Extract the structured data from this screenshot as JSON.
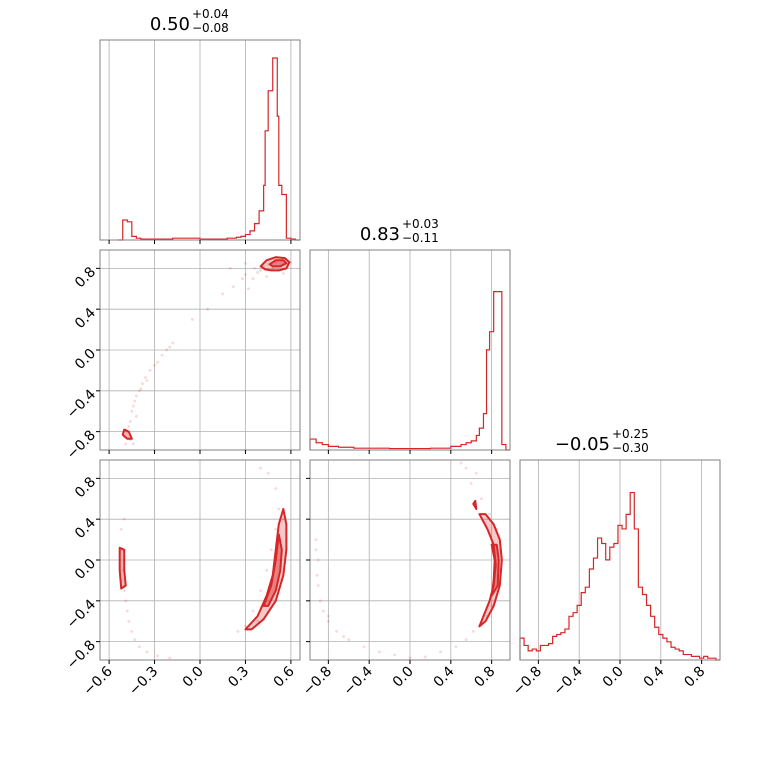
{
  "chart_data": {
    "type": "corner",
    "color": "#d62728",
    "axis_color": "#808080",
    "grid_color": "#b0b0b0",
    "grid": true,
    "parameters": [
      {
        "title": {
          "median": "0.50",
          "plus": "+0.04",
          "minus": "−0.08"
        },
        "range": [
          -0.66,
          0.66
        ],
        "ticks": [
          -0.6,
          -0.3,
          0.0,
          0.3,
          0.6
        ],
        "tick_labels": [
          "−0.6",
          "−0.3",
          "0.0",
          "0.3",
          "0.6"
        ],
        "histogram": {
          "x": [
            -0.54,
            -0.51,
            -0.48,
            -0.45,
            -0.42,
            -0.39,
            -0.33,
            -0.24,
            -0.18,
            0.0,
            0.18,
            0.24,
            0.27,
            0.3,
            0.33,
            0.36,
            0.39,
            0.42,
            0.43,
            0.45,
            0.46,
            0.48,
            0.49,
            0.51,
            0.52,
            0.54,
            0.57,
            0.6,
            0.63
          ],
          "y": [
            0.0,
            0.11,
            0.1,
            0.02,
            0.01,
            0.005,
            0.005,
            0.005,
            0.01,
            0.005,
            0.01,
            0.015,
            0.02,
            0.03,
            0.05,
            0.09,
            0.16,
            0.3,
            0.6,
            0.82,
            0.82,
            1.0,
            1.0,
            0.68,
            0.3,
            0.25,
            0.01,
            0.005,
            0.0
          ]
        }
      },
      {
        "title": {
          "median": "0.83",
          "plus": "+0.03",
          "minus": "−0.11"
        },
        "range": [
          -0.98,
          0.98
        ],
        "ticks": [
          -0.8,
          -0.4,
          0.0,
          0.4,
          0.8
        ],
        "tick_labels": [
          "−0.8",
          "−0.4",
          "0.0",
          "0.4",
          "0.8"
        ],
        "histogram": {
          "x": [
            -0.98,
            -0.92,
            -0.86,
            -0.8,
            -0.7,
            -0.55,
            -0.4,
            -0.2,
            0.0,
            0.2,
            0.4,
            0.5,
            0.55,
            0.6,
            0.65,
            0.68,
            0.72,
            0.75,
            0.78,
            0.82,
            0.86,
            0.9,
            0.94
          ],
          "y": [
            0.06,
            0.04,
            0.03,
            0.02,
            0.015,
            0.01,
            0.01,
            0.008,
            0.008,
            0.01,
            0.02,
            0.03,
            0.04,
            0.05,
            0.08,
            0.12,
            0.2,
            0.55,
            0.65,
            0.87,
            0.87,
            0.03,
            0.0
          ]
        }
      },
      {
        "title": {
          "median": "−0.05",
          "plus": "+0.25",
          "minus": "−0.30"
        },
        "range": [
          -0.98,
          0.98
        ],
        "ticks": [
          -0.8,
          -0.4,
          0.0,
          0.4,
          0.8
        ],
        "tick_labels": [
          "−0.8",
          "−0.4",
          "0.0",
          "0.4",
          "0.8"
        ],
        "histogram": {
          "x": [
            -0.98,
            -0.94,
            -0.9,
            -0.86,
            -0.82,
            -0.78,
            -0.74,
            -0.7,
            -0.66,
            -0.62,
            -0.58,
            -0.54,
            -0.5,
            -0.46,
            -0.42,
            -0.38,
            -0.34,
            -0.3,
            -0.26,
            -0.22,
            -0.18,
            -0.14,
            -0.1,
            -0.06,
            -0.02,
            0.02,
            0.06,
            0.1,
            0.14,
            0.18,
            0.22,
            0.26,
            0.3,
            0.34,
            0.38,
            0.42,
            0.46,
            0.5,
            0.54,
            0.58,
            0.62,
            0.66,
            0.7,
            0.74,
            0.78,
            0.82,
            0.86,
            0.9,
            0.94
          ],
          "y": [
            0.12,
            0.08,
            0.05,
            0.06,
            0.05,
            0.08,
            0.08,
            0.09,
            0.13,
            0.14,
            0.15,
            0.17,
            0.24,
            0.26,
            0.3,
            0.37,
            0.4,
            0.5,
            0.56,
            0.67,
            0.64,
            0.55,
            0.62,
            0.64,
            0.74,
            0.72,
            0.8,
            0.92,
            0.72,
            0.4,
            0.36,
            0.3,
            0.24,
            0.18,
            0.14,
            0.12,
            0.1,
            0.07,
            0.06,
            0.05,
            0.03,
            0.03,
            0.02,
            0.02,
            0.01,
            0.02,
            0.01,
            0.01,
            0.0
          ]
        }
      }
    ],
    "panels_2d": [
      {
        "row": 1,
        "col": 0,
        "scatter": [
          [
            -0.5,
            -0.85
          ],
          [
            -0.48,
            -0.8
          ],
          [
            -0.47,
            -0.75
          ],
          [
            -0.46,
            -0.7
          ],
          [
            -0.45,
            -0.6
          ],
          [
            -0.44,
            -0.55
          ],
          [
            -0.43,
            -0.5
          ],
          [
            -0.42,
            -0.45
          ],
          [
            -0.4,
            -0.4
          ],
          [
            -0.38,
            -0.33
          ],
          [
            -0.36,
            -0.27
          ],
          [
            -0.33,
            -0.2
          ],
          [
            -0.3,
            -0.15
          ],
          [
            -0.28,
            -0.12
          ],
          [
            -0.25,
            -0.05
          ],
          [
            -0.22,
            0.0
          ],
          [
            -0.18,
            0.07
          ],
          [
            -0.2,
            0.03
          ],
          [
            -0.35,
            -0.3
          ],
          [
            -0.05,
            0.3
          ],
          [
            0.05,
            0.4
          ],
          [
            0.15,
            0.55
          ],
          [
            0.22,
            0.62
          ],
          [
            0.28,
            0.7
          ],
          [
            0.3,
            0.74
          ],
          [
            0.32,
            0.6
          ],
          [
            0.35,
            0.7
          ],
          [
            0.38,
            0.76
          ],
          [
            0.4,
            0.78
          ],
          [
            0.42,
            0.82
          ],
          [
            0.45,
            0.84
          ],
          [
            0.48,
            0.8
          ],
          [
            0.52,
            0.78
          ],
          [
            0.55,
            0.75
          ],
          [
            0.58,
            0.82
          ],
          [
            0.6,
            0.86
          ],
          [
            0.36,
            0.8
          ],
          [
            0.44,
            0.72
          ],
          [
            0.5,
            0.86
          ],
          [
            0.3,
            0.85
          ],
          [
            0.2,
            0.8
          ],
          [
            -0.46,
            -0.88
          ],
          [
            -0.49,
            -0.92
          ],
          [
            -0.44,
            -0.92
          ],
          [
            -0.42,
            -0.65
          ],
          [
            -0.39,
            -0.38
          ]
        ],
        "contour": [
          [
            0.4,
            0.82
          ],
          [
            0.44,
            0.88
          ],
          [
            0.5,
            0.91
          ],
          [
            0.56,
            0.9
          ],
          [
            0.59,
            0.86
          ],
          [
            0.57,
            0.8
          ],
          [
            0.52,
            0.78
          ],
          [
            0.47,
            0.78
          ],
          [
            0.43,
            0.79
          ]
        ],
        "contour_inner": [
          [
            0.46,
            0.84
          ],
          [
            0.5,
            0.88
          ],
          [
            0.55,
            0.88
          ],
          [
            0.57,
            0.85
          ],
          [
            0.53,
            0.82
          ],
          [
            0.48,
            0.82
          ]
        ],
        "contour_small": [
          [
            -0.5,
            -0.78
          ],
          [
            -0.47,
            -0.8
          ],
          [
            -0.45,
            -0.87
          ],
          [
            -0.48,
            -0.87
          ],
          [
            -0.51,
            -0.83
          ]
        ]
      },
      {
        "row": 2,
        "col": 0,
        "scatter": [
          [
            -0.52,
            0.1
          ],
          [
            -0.5,
            0.0
          ],
          [
            -0.51,
            -0.1
          ],
          [
            -0.52,
            -0.2
          ],
          [
            -0.5,
            -0.3
          ],
          [
            -0.49,
            -0.4
          ],
          [
            -0.48,
            -0.5
          ],
          [
            -0.47,
            -0.6
          ],
          [
            -0.45,
            -0.7
          ],
          [
            -0.43,
            -0.78
          ],
          [
            -0.4,
            -0.85
          ],
          [
            -0.35,
            -0.9
          ],
          [
            -0.28,
            -0.94
          ],
          [
            -0.2,
            -0.96
          ],
          [
            -0.52,
            0.3
          ],
          [
            -0.5,
            0.4
          ],
          [
            0.25,
            -0.7
          ],
          [
            0.3,
            -0.65
          ],
          [
            0.35,
            -0.5
          ],
          [
            0.4,
            -0.3
          ],
          [
            0.44,
            -0.1
          ],
          [
            0.47,
            0.1
          ],
          [
            0.5,
            0.3
          ],
          [
            0.52,
            0.5
          ],
          [
            0.5,
            0.7
          ],
          [
            0.45,
            0.85
          ],
          [
            0.4,
            0.9
          ],
          [
            0.55,
            0.4
          ],
          [
            0.53,
            0.2
          ],
          [
            0.48,
            -0.2
          ],
          [
            0.42,
            -0.45
          ],
          [
            0.38,
            -0.6
          ]
        ],
        "contour": [
          [
            0.3,
            -0.68
          ],
          [
            0.38,
            -0.55
          ],
          [
            0.44,
            -0.35
          ],
          [
            0.48,
            -0.15
          ],
          [
            0.5,
            0.1
          ],
          [
            0.52,
            0.35
          ],
          [
            0.55,
            0.5
          ],
          [
            0.57,
            0.35
          ],
          [
            0.57,
            0.1
          ],
          [
            0.55,
            -0.15
          ],
          [
            0.5,
            -0.4
          ],
          [
            0.42,
            -0.58
          ],
          [
            0.34,
            -0.68
          ]
        ],
        "contour_inner": [
          [
            0.42,
            -0.45
          ],
          [
            0.47,
            -0.25
          ],
          [
            0.5,
            0.0
          ],
          [
            0.52,
            0.25
          ],
          [
            0.54,
            0.1
          ],
          [
            0.53,
            -0.1
          ],
          [
            0.5,
            -0.3
          ],
          [
            0.45,
            -0.45
          ]
        ],
        "contour_small": [
          [
            -0.53,
            0.12
          ],
          [
            -0.5,
            0.1
          ],
          [
            -0.5,
            -0.1
          ],
          [
            -0.49,
            -0.25
          ],
          [
            -0.52,
            -0.28
          ],
          [
            -0.53,
            -0.1
          ]
        ]
      },
      {
        "row": 2,
        "col": 1,
        "scatter": [
          [
            -0.92,
            0.1
          ],
          [
            -0.9,
            0.0
          ],
          [
            -0.91,
            -0.15
          ],
          [
            -0.9,
            -0.25
          ],
          [
            -0.88,
            -0.4
          ],
          [
            -0.85,
            -0.5
          ],
          [
            -0.8,
            -0.6
          ],
          [
            -0.72,
            -0.7
          ],
          [
            -0.6,
            -0.78
          ],
          [
            -0.45,
            -0.85
          ],
          [
            -0.3,
            -0.9
          ],
          [
            -0.15,
            -0.93
          ],
          [
            0.0,
            -0.96
          ],
          [
            0.15,
            -0.95
          ],
          [
            0.3,
            -0.9
          ],
          [
            0.45,
            -0.85
          ],
          [
            0.55,
            -0.78
          ],
          [
            0.62,
            -0.7
          ],
          [
            0.65,
            0.85
          ],
          [
            0.55,
            0.9
          ],
          [
            0.6,
            0.75
          ],
          [
            0.7,
            0.6
          ],
          [
            0.78,
            0.45
          ],
          [
            0.85,
            0.3
          ],
          [
            0.88,
            0.1
          ],
          [
            0.88,
            -0.1
          ],
          [
            0.85,
            -0.3
          ],
          [
            0.8,
            -0.45
          ],
          [
            0.75,
            -0.55
          ],
          [
            0.68,
            -0.65
          ],
          [
            -0.92,
            0.2
          ],
          [
            0.5,
            0.95
          ],
          [
            -0.8,
            -0.55
          ],
          [
            -0.65,
            -0.75
          ]
        ],
        "contour": [
          [
            0.68,
            0.45
          ],
          [
            0.76,
            0.3
          ],
          [
            0.82,
            0.15
          ],
          [
            0.84,
            -0.05
          ],
          [
            0.82,
            -0.25
          ],
          [
            0.78,
            -0.4
          ],
          [
            0.72,
            -0.55
          ],
          [
            0.68,
            -0.65
          ],
          [
            0.74,
            -0.6
          ],
          [
            0.82,
            -0.45
          ],
          [
            0.88,
            -0.25
          ],
          [
            0.9,
            0.0
          ],
          [
            0.88,
            0.2
          ],
          [
            0.82,
            0.35
          ],
          [
            0.74,
            0.45
          ]
        ],
        "contour_inner": [
          [
            0.8,
            0.15
          ],
          [
            0.83,
            0.0
          ],
          [
            0.82,
            -0.2
          ],
          [
            0.8,
            -0.35
          ],
          [
            0.86,
            -0.25
          ],
          [
            0.87,
            0.0
          ],
          [
            0.85,
            0.15
          ]
        ],
        "contour_small": [
          [
            0.62,
            0.55
          ],
          [
            0.65,
            0.5
          ],
          [
            0.64,
            0.58
          ]
        ]
      }
    ]
  }
}
